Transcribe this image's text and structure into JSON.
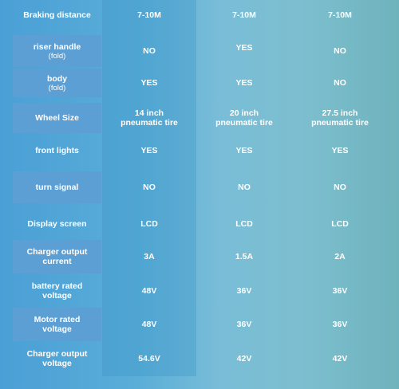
{
  "rows": [
    {
      "label": "Braking distance",
      "sub": "",
      "v": [
        "7-10M",
        "7-10M",
        "7-10M"
      ]
    },
    {
      "label": "riser handle",
      "sub": "(fold)",
      "v": [
        "NO",
        "YES",
        "NO"
      ]
    },
    {
      "label": "body",
      "sub": "(fold)",
      "v": [
        "YES",
        "YES",
        "NO"
      ]
    },
    {
      "label": "Wheel Size",
      "sub": "",
      "v": [
        "14 inch\npneumatic tire",
        "20 inch\npneumatic tire",
        "27.5 inch\npneumatic tire"
      ]
    },
    {
      "label": "front lights",
      "sub": "",
      "v": [
        "YES",
        "YES",
        "YES"
      ]
    },
    {
      "label": "turn signal",
      "sub": "",
      "v": [
        "NO",
        "NO",
        "NO"
      ]
    },
    {
      "label": "Display screen",
      "sub": "",
      "v": [
        "LCD",
        "LCD",
        "LCD"
      ]
    },
    {
      "label": "Charger output current",
      "sub": "",
      "v": [
        "3A",
        "1.5A",
        "2A"
      ]
    },
    {
      "label": "battery rated voltage",
      "sub": "",
      "v": [
        "48V",
        "36V",
        "36V"
      ]
    },
    {
      "label": "Motor rated voltage",
      "sub": "",
      "v": [
        "48V",
        "36V",
        "36V"
      ]
    },
    {
      "label": "Charger output voltage",
      "sub": "",
      "v": [
        "54.6V",
        "42V",
        "42V"
      ]
    }
  ]
}
